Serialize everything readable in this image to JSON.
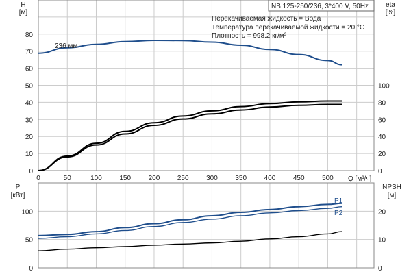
{
  "chart_data": [
    {
      "type": "line",
      "title": "NB 125-250/236, 3*400 V, 50Hz",
      "annotations": [
        "Перекачиваемая жидкость = Вода",
        "Температура перекачиваемой жидкости = 20 °C",
        "Плотность = 998.2 кг/м³"
      ],
      "curve_label": "236 мм",
      "xlabel": "Q [м³/ч]",
      "ylabel": "H",
      "ylabel_unit": "[м]",
      "y2label": "eta",
      "y2label_unit": "[%]",
      "xlim": [
        0,
        580
      ],
      "ylim": [
        0,
        100
      ],
      "y2lim": [
        0,
        200
      ],
      "xticks": [
        0,
        50,
        100,
        150,
        200,
        250,
        300,
        350,
        400,
        450,
        500
      ],
      "yticks": [
        0,
        10,
        20,
        30,
        40,
        50,
        60,
        70,
        80
      ],
      "y2ticks": [
        0,
        20,
        40,
        60,
        80,
        100
      ],
      "grid": true,
      "x": [
        0,
        50,
        100,
        150,
        200,
        250,
        300,
        350,
        400,
        450,
        500,
        525
      ],
      "series": [
        {
          "axis": "left",
          "color": "#1f4e8c",
          "values": [
            68.8,
            72,
            74,
            75.6,
            76.3,
            76.2,
            75.3,
            73.5,
            71,
            68,
            64.5,
            62
          ]
        },
        {
          "axis": "right",
          "color": "#000000",
          "values": [
            0,
            17,
            32,
            46,
            56,
            64,
            70,
            75,
            78.5,
            80.5,
            81.5,
            81.5
          ]
        },
        {
          "axis": "right",
          "color": "#000000",
          "values": [
            0,
            16,
            30,
            43,
            53,
            60.5,
            66.5,
            71,
            74.5,
            76.5,
            77.5,
            77.5
          ]
        }
      ]
    },
    {
      "type": "line",
      "ylabel": "P",
      "ylabel_unit": "[кВт]",
      "y2label": "NPSH",
      "y2label_unit": "[м]",
      "xlim": [
        0,
        580
      ],
      "ylim": [
        0,
        150
      ],
      "y2lim": [
        0,
        30
      ],
      "yticks": [
        0,
        50,
        100
      ],
      "y2ticks": [
        0,
        10,
        20
      ],
      "grid": true,
      "x": [
        0,
        50,
        100,
        150,
        200,
        250,
        300,
        350,
        400,
        450,
        500,
        525
      ],
      "series": [
        {
          "name": "P1",
          "axis": "left",
          "color": "#1f4e8c",
          "values": [
            57,
            59,
            64,
            71,
            78,
            85,
            92,
            98,
            103,
            108,
            112,
            114
          ]
        },
        {
          "name": "P2",
          "axis": "left",
          "color": "#1f4e8c",
          "values": [
            52,
            55,
            60,
            66,
            73,
            80,
            86,
            92,
            97,
            101,
            105,
            108
          ]
        },
        {
          "axis": "right",
          "color": "#000000",
          "values": [
            6,
            6.6,
            7.1,
            7.5,
            8,
            8.4,
            8.8,
            9.4,
            10.2,
            11,
            12,
            12.8
          ]
        }
      ]
    }
  ]
}
